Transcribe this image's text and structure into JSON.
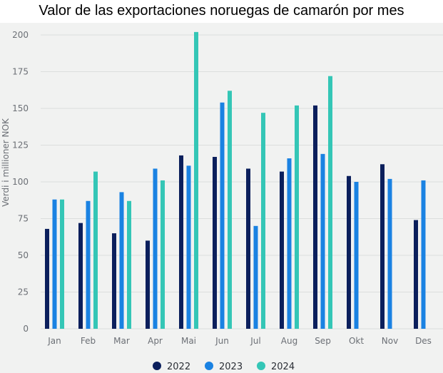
{
  "chart_data": {
    "type": "bar",
    "title": "Valor de las exportaciones noruegas de camarón por mes",
    "ylabel": "Verdi i millioner NOK",
    "xlabel": "",
    "ylim": [
      0,
      200
    ],
    "yticks": [
      0,
      25,
      50,
      75,
      100,
      125,
      150,
      175,
      200
    ],
    "categories": [
      "Jan",
      "Feb",
      "Mar",
      "Apr",
      "Mai",
      "Jun",
      "Jul",
      "Aug",
      "Sep",
      "Okt",
      "Nov",
      "Des"
    ],
    "series": [
      {
        "name": "2022",
        "color": "#0b1f5c",
        "values": [
          68,
          72,
          65,
          60,
          118,
          117,
          109,
          107,
          152,
          104,
          112,
          74
        ]
      },
      {
        "name": "2023",
        "color": "#1a82e2",
        "values": [
          88,
          87,
          93,
          109,
          111,
          154,
          70,
          116,
          119,
          100,
          102,
          101
        ]
      },
      {
        "name": "2024",
        "color": "#34c6b6",
        "values": [
          88,
          107,
          87,
          101,
          202,
          162,
          147,
          152,
          172,
          null,
          null,
          null
        ]
      }
    ],
    "grid": true,
    "legend": "bottom-center"
  }
}
